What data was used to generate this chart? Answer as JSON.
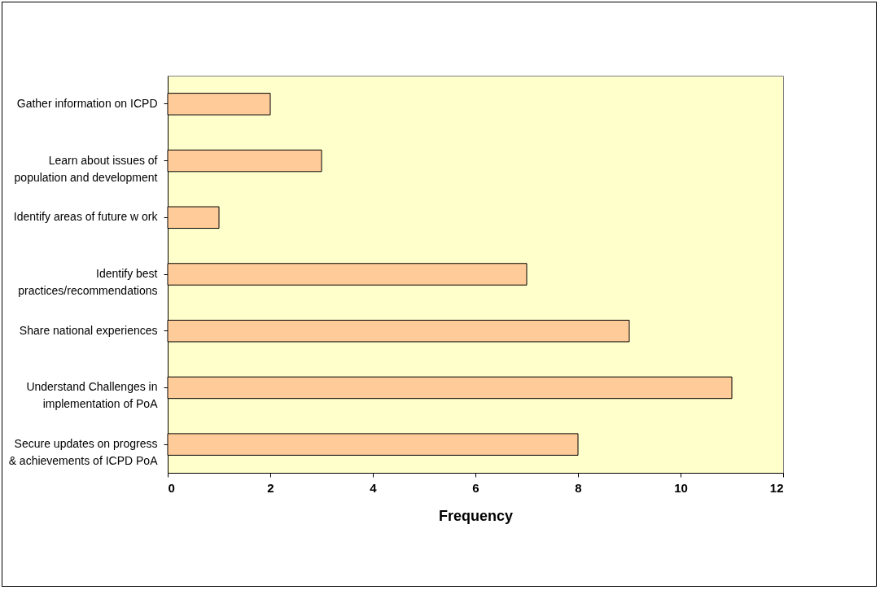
{
  "chart_data": {
    "type": "bar",
    "orientation": "horizontal",
    "xlabel": "Frequency",
    "categories": [
      "Gather information on  ICPD",
      "Learn about issues of\npopulation and development",
      "Identify areas of future w ork",
      "Identify best\npractices/recommendations",
      "Share national experiences",
      "Understand Challenges in\nimplementation of PoA",
      "Secure updates on progress\n& achievements of ICPD PoA"
    ],
    "values": [
      2,
      3,
      1,
      7,
      9,
      11,
      8
    ],
    "color": "#ffcc99",
    "xlim": [
      0,
      12
    ],
    "xticks": [
      0,
      2,
      4,
      6,
      8,
      10,
      12
    ],
    "grid": false
  }
}
